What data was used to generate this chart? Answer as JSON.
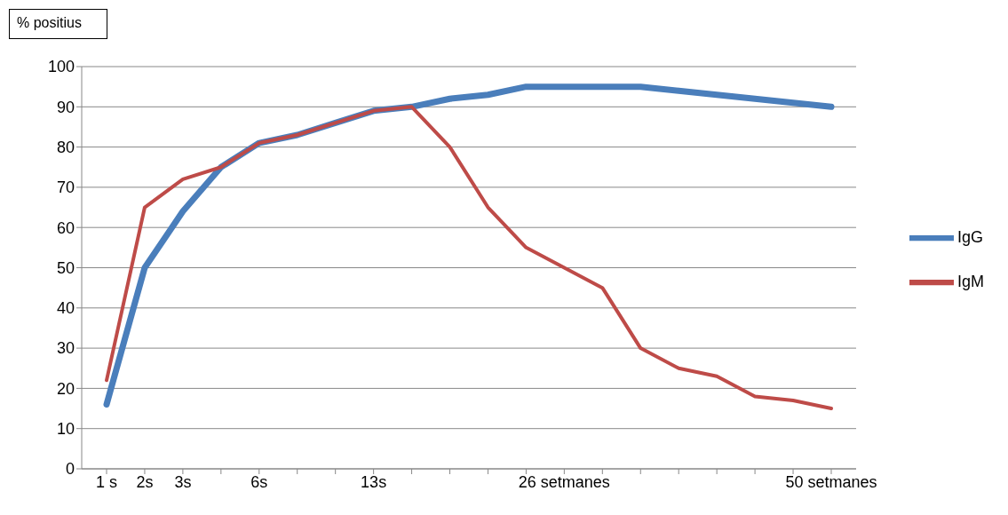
{
  "chart_data": {
    "type": "line",
    "ylabel": "% positius",
    "categories": [
      "1 s",
      "2s",
      "3s",
      null,
      "6s",
      null,
      null,
      "13s",
      null,
      null,
      null,
      null,
      "26 setmanes",
      null,
      null,
      null,
      null,
      null,
      null,
      "50 setmanes"
    ],
    "series": [
      {
        "name": "IgG",
        "color": "#4a7ebb",
        "values": [
          16,
          50,
          64,
          75,
          81,
          83,
          86,
          89,
          90,
          92,
          93,
          95,
          95,
          95,
          95,
          94,
          93,
          92,
          91,
          90
        ]
      },
      {
        "name": "IgM",
        "color": "#be4b48",
        "values": [
          22,
          65,
          72,
          75,
          81,
          83,
          86,
          89,
          90,
          80,
          65,
          55,
          50,
          45,
          30,
          25,
          23,
          18,
          17,
          15
        ]
      }
    ],
    "ylim": [
      0,
      100
    ],
    "yticks": [
      0,
      10,
      20,
      30,
      40,
      50,
      60,
      70,
      80,
      90,
      100
    ],
    "grid": "y",
    "legend": "right",
    "marker": "none",
    "line_style": "solid"
  }
}
